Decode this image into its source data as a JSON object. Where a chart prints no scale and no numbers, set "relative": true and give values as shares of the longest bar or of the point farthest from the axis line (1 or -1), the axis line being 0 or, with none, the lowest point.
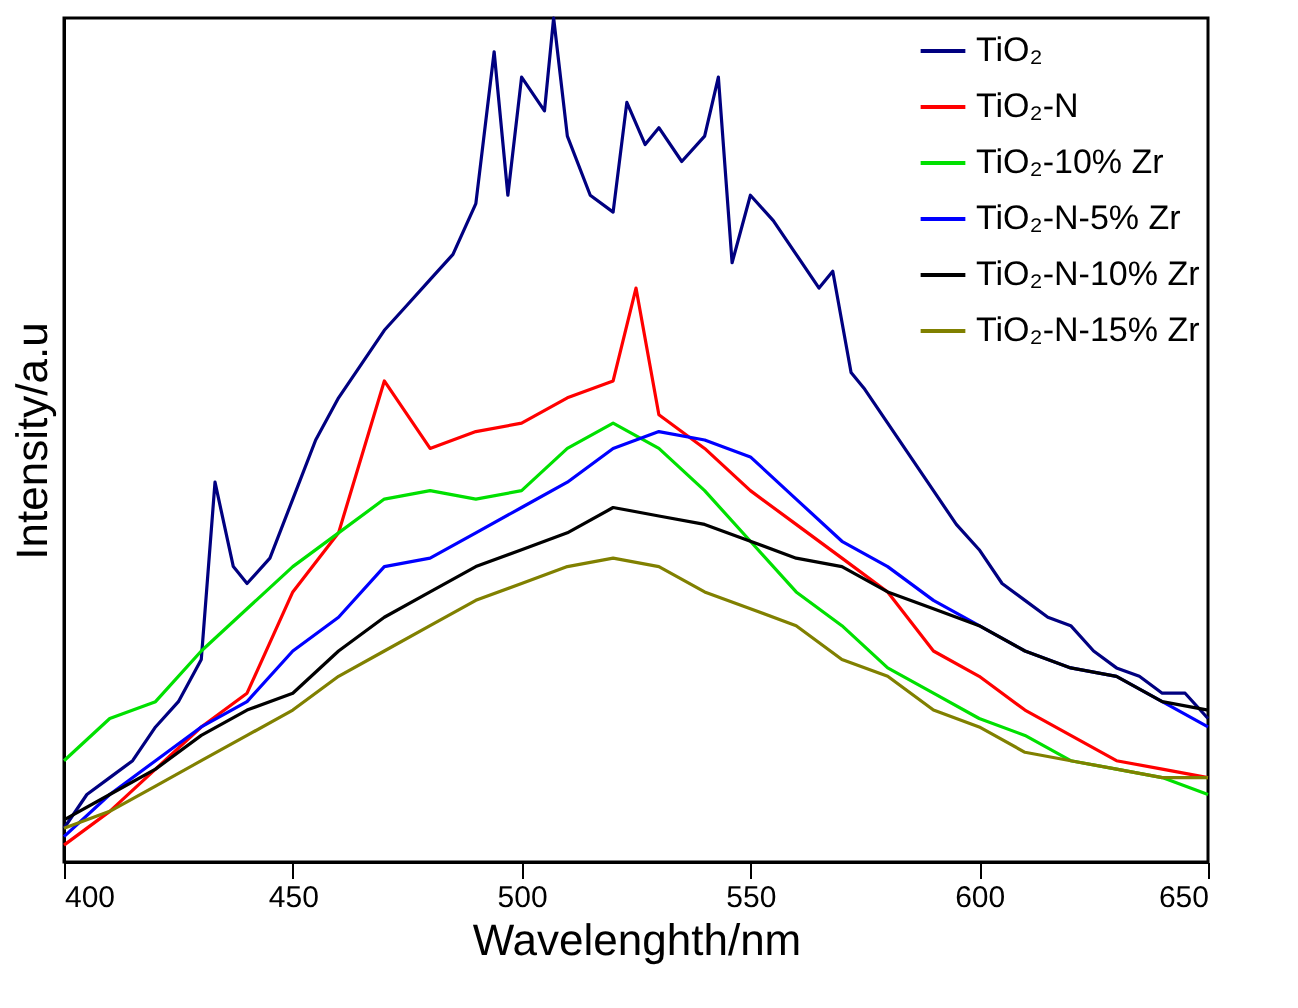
{
  "chart_data": {
    "type": "line",
    "xlabel": "Wavelenghth/nm",
    "ylabel": "Intensity/a.u",
    "relative": true,
    "xlim": [
      400,
      650
    ],
    "xticks": [
      400,
      450,
      500,
      550,
      600,
      650
    ],
    "grid": false,
    "legend": "top right",
    "series": [
      {
        "name": "TiO₂",
        "color": "#000080",
        "x": [
          400,
          405,
          410,
          415,
          420,
          425,
          430,
          433,
          437,
          440,
          445,
          450,
          455,
          460,
          465,
          470,
          475,
          480,
          485,
          490,
          494,
          497,
          500,
          505,
          507,
          510,
          515,
          520,
          523,
          527,
          530,
          535,
          540,
          543,
          546,
          550,
          555,
          560,
          565,
          568,
          572,
          575,
          580,
          585,
          590,
          595,
          600,
          605,
          610,
          615,
          620,
          625,
          630,
          635,
          640,
          645,
          650
        ],
        "values": [
          0.04,
          0.08,
          0.1,
          0.12,
          0.16,
          0.19,
          0.24,
          0.45,
          0.35,
          0.33,
          0.36,
          0.43,
          0.5,
          0.55,
          0.59,
          0.63,
          0.66,
          0.69,
          0.72,
          0.78,
          0.96,
          0.79,
          0.93,
          0.89,
          1.0,
          0.86,
          0.79,
          0.77,
          0.9,
          0.85,
          0.87,
          0.83,
          0.86,
          0.93,
          0.71,
          0.79,
          0.76,
          0.72,
          0.68,
          0.7,
          0.58,
          0.56,
          0.52,
          0.48,
          0.44,
          0.4,
          0.37,
          0.33,
          0.31,
          0.29,
          0.28,
          0.25,
          0.23,
          0.22,
          0.2,
          0.2,
          0.17
        ]
      },
      {
        "name": "TiO₂-N",
        "color": "#ff0000",
        "x": [
          400,
          410,
          420,
          430,
          440,
          450,
          460,
          470,
          480,
          490,
          500,
          510,
          520,
          525,
          530,
          540,
          550,
          560,
          570,
          580,
          590,
          600,
          610,
          620,
          630,
          640,
          650
        ],
        "values": [
          0.02,
          0.06,
          0.11,
          0.16,
          0.2,
          0.32,
          0.39,
          0.57,
          0.49,
          0.51,
          0.52,
          0.55,
          0.57,
          0.68,
          0.53,
          0.49,
          0.44,
          0.4,
          0.36,
          0.32,
          0.25,
          0.22,
          0.18,
          0.15,
          0.12,
          0.11,
          0.1
        ]
      },
      {
        "name": "TiO₂-10% Zr",
        "color": "#00e000",
        "x": [
          400,
          410,
          420,
          430,
          440,
          450,
          460,
          470,
          480,
          490,
          500,
          510,
          520,
          530,
          540,
          550,
          560,
          570,
          580,
          590,
          600,
          610,
          620,
          630,
          640,
          650
        ],
        "values": [
          0.12,
          0.17,
          0.19,
          0.25,
          0.3,
          0.35,
          0.39,
          0.43,
          0.44,
          0.43,
          0.44,
          0.49,
          0.52,
          0.49,
          0.44,
          0.38,
          0.32,
          0.28,
          0.23,
          0.2,
          0.17,
          0.15,
          0.12,
          0.11,
          0.1,
          0.08
        ]
      },
      {
        "name": "TiO₂-N-5% Zr",
        "color": "#0000ff",
        "x": [
          400,
          410,
          420,
          430,
          440,
          450,
          460,
          470,
          480,
          490,
          500,
          510,
          520,
          530,
          540,
          550,
          560,
          570,
          580,
          590,
          600,
          610,
          620,
          630,
          640,
          650
        ],
        "values": [
          0.03,
          0.08,
          0.12,
          0.16,
          0.19,
          0.25,
          0.29,
          0.35,
          0.36,
          0.39,
          0.42,
          0.45,
          0.49,
          0.51,
          0.5,
          0.48,
          0.43,
          0.38,
          0.35,
          0.31,
          0.28,
          0.25,
          0.23,
          0.22,
          0.19,
          0.16
        ]
      },
      {
        "name": "TiO₂-N-10% Zr",
        "color": "#000000",
        "x": [
          400,
          410,
          420,
          430,
          440,
          450,
          460,
          470,
          480,
          490,
          500,
          510,
          520,
          530,
          540,
          550,
          560,
          570,
          580,
          590,
          600,
          610,
          620,
          630,
          640,
          650
        ],
        "values": [
          0.05,
          0.08,
          0.11,
          0.15,
          0.18,
          0.2,
          0.25,
          0.29,
          0.32,
          0.35,
          0.37,
          0.39,
          0.42,
          0.41,
          0.4,
          0.38,
          0.36,
          0.35,
          0.32,
          0.3,
          0.28,
          0.25,
          0.23,
          0.22,
          0.19,
          0.18
        ]
      },
      {
        "name": "TiO₂-N-15% Zr",
        "color": "#808000",
        "x": [
          400,
          410,
          420,
          430,
          440,
          450,
          460,
          470,
          480,
          490,
          500,
          510,
          520,
          530,
          540,
          550,
          560,
          570,
          580,
          590,
          600,
          610,
          620,
          630,
          640,
          650
        ],
        "values": [
          0.04,
          0.06,
          0.09,
          0.12,
          0.15,
          0.18,
          0.22,
          0.25,
          0.28,
          0.31,
          0.33,
          0.35,
          0.36,
          0.35,
          0.32,
          0.3,
          0.28,
          0.24,
          0.22,
          0.18,
          0.16,
          0.13,
          0.12,
          0.11,
          0.1,
          0.1
        ]
      }
    ]
  }
}
